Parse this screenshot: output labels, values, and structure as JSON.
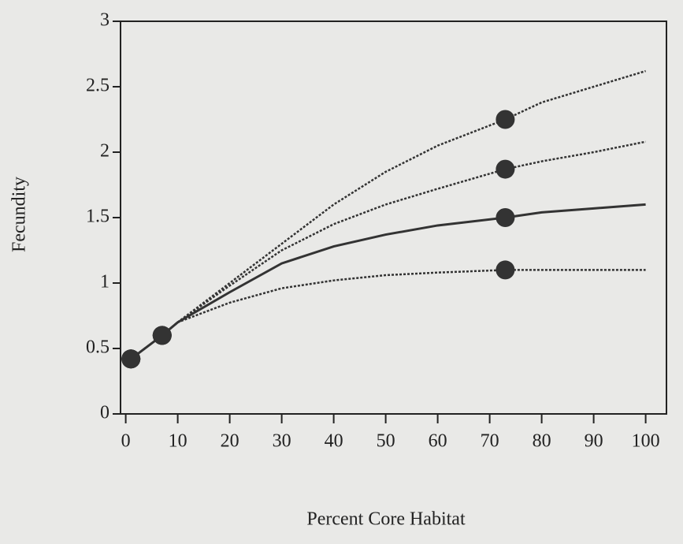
{
  "chart_data": {
    "type": "line",
    "x_label": "Percent Core Habitat",
    "y_label": "Fecundity",
    "x": [
      1,
      7,
      10,
      20,
      30,
      40,
      50,
      60,
      73,
      80,
      90,
      100
    ],
    "series": [
      {
        "color": "#333333",
        "dash": "dashed",
        "values": [
          0.42,
          0.6,
          0.7,
          1.0,
          1.3,
          1.6,
          1.85,
          2.05,
          2.25,
          2.38,
          2.5,
          2.62
        ]
      },
      {
        "color": "#333333",
        "dash": "dashed",
        "values": [
          0.42,
          0.6,
          0.7,
          0.98,
          1.25,
          1.45,
          1.6,
          1.72,
          1.87,
          1.93,
          2.0,
          2.08
        ]
      },
      {
        "color": "#333333",
        "dash": "solid",
        "values": [
          0.42,
          0.6,
          0.7,
          0.93,
          1.15,
          1.28,
          1.37,
          1.44,
          1.5,
          1.54,
          1.57,
          1.6
        ]
      },
      {
        "color": "#333333",
        "dash": "dashed",
        "values": [
          0.42,
          0.6,
          0.7,
          0.85,
          0.96,
          1.02,
          1.06,
          1.08,
          1.1,
          1.1,
          1.1,
          1.1
        ]
      }
    ],
    "marker_x": [
      1,
      7,
      73
    ],
    "xlim": [
      -1,
      104
    ],
    "xticks": [
      0,
      10,
      20,
      30,
      40,
      50,
      60,
      70,
      80,
      90,
      100
    ],
    "ylim": [
      0,
      3
    ],
    "yticks": [
      0,
      0.5,
      1,
      1.5,
      2,
      2.5,
      3
    ],
    "grid": false
  }
}
